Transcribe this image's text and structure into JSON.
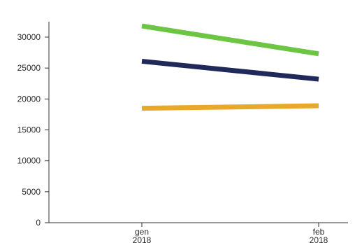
{
  "chart_data": {
    "type": "line",
    "categories": [
      {
        "line1": "gen",
        "line2": "2018"
      },
      {
        "line1": "feb",
        "line2": "2018"
      }
    ],
    "series": [
      {
        "color": "#6cc644",
        "values": [
          31800,
          27300
        ]
      },
      {
        "color": "#1f2a5a",
        "values": [
          26100,
          23200
        ]
      },
      {
        "color": "#e8a92a",
        "values": [
          18500,
          18900
        ]
      }
    ],
    "yticks": [
      0,
      5000,
      10000,
      15000,
      20000,
      25000,
      30000
    ],
    "ylim": [
      0,
      32500
    ],
    "grid": false,
    "legend": "none"
  }
}
